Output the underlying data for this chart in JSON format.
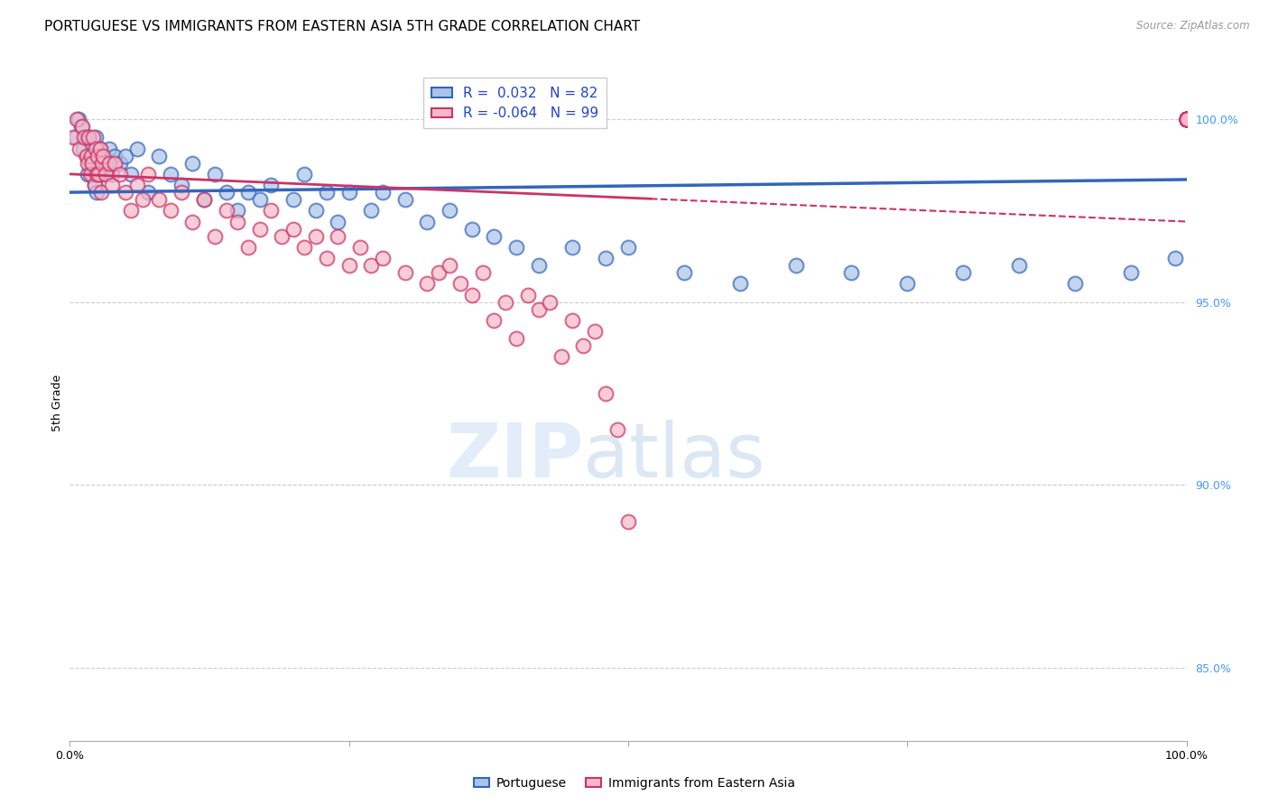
{
  "title": "PORTUGUESE VS IMMIGRANTS FROM EASTERN ASIA 5TH GRADE CORRELATION CHART",
  "source": "Source: ZipAtlas.com",
  "ylabel": "5th Grade",
  "r_blue": 0.032,
  "n_blue": 82,
  "r_pink": -0.064,
  "n_pink": 99,
  "blue_color": "#aac4e8",
  "pink_color": "#f5b8c8",
  "blue_line_color": "#3366bb",
  "pink_line_color": "#cc3366",
  "x_blue": [
    0.5,
    0.8,
    1.0,
    1.2,
    1.4,
    1.5,
    1.6,
    1.7,
    1.8,
    1.9,
    2.0,
    2.1,
    2.2,
    2.3,
    2.4,
    2.5,
    2.6,
    2.7,
    2.8,
    3.0,
    3.2,
    3.5,
    3.8,
    4.0,
    4.5,
    5.0,
    5.5,
    6.0,
    7.0,
    8.0,
    9.0,
    10.0,
    11.0,
    12.0,
    13.0,
    14.0,
    15.0,
    16.0,
    17.0,
    18.0,
    20.0,
    21.0,
    22.0,
    23.0,
    24.0,
    25.0,
    27.0,
    28.0,
    30.0,
    32.0,
    34.0,
    36.0,
    38.0,
    40.0,
    42.0,
    45.0,
    48.0,
    50.0,
    55.0,
    60.0,
    65.0,
    70.0,
    75.0,
    80.0,
    85.0,
    90.0,
    95.0,
    99.0,
    100.0,
    100.0,
    100.0,
    100.0,
    100.0,
    100.0,
    100.0,
    100.0,
    100.0,
    100.0,
    100.0,
    100.0,
    100.0,
    100.0
  ],
  "y_blue": [
    99.5,
    100.0,
    99.8,
    99.2,
    99.5,
    99.0,
    98.5,
    99.5,
    98.8,
    99.3,
    98.5,
    99.0,
    98.2,
    99.5,
    98.0,
    99.0,
    98.8,
    99.2,
    98.5,
    99.0,
    98.8,
    99.2,
    98.5,
    99.0,
    98.8,
    99.0,
    98.5,
    99.2,
    98.0,
    99.0,
    98.5,
    98.2,
    98.8,
    97.8,
    98.5,
    98.0,
    97.5,
    98.0,
    97.8,
    98.2,
    97.8,
    98.5,
    97.5,
    98.0,
    97.2,
    98.0,
    97.5,
    98.0,
    97.8,
    97.2,
    97.5,
    97.0,
    96.8,
    96.5,
    96.0,
    96.5,
    96.2,
    96.5,
    95.8,
    95.5,
    96.0,
    95.8,
    95.5,
    95.8,
    96.0,
    95.5,
    95.8,
    96.2,
    100.0,
    100.0,
    100.0,
    100.0,
    100.0,
    100.0,
    100.0,
    100.0,
    100.0,
    100.0,
    100.0,
    100.0,
    100.0,
    100.0
  ],
  "x_pink": [
    0.3,
    0.6,
    0.9,
    1.1,
    1.3,
    1.5,
    1.6,
    1.7,
    1.8,
    1.9,
    2.0,
    2.1,
    2.2,
    2.3,
    2.4,
    2.5,
    2.6,
    2.7,
    2.8,
    2.9,
    3.0,
    3.2,
    3.5,
    3.8,
    4.0,
    4.5,
    5.0,
    5.5,
    6.0,
    6.5,
    7.0,
    8.0,
    9.0,
    10.0,
    11.0,
    12.0,
    13.0,
    14.0,
    15.0,
    16.0,
    17.0,
    18.0,
    19.0,
    20.0,
    21.0,
    22.0,
    23.0,
    24.0,
    25.0,
    26.0,
    27.0,
    28.0,
    30.0,
    32.0,
    33.0,
    34.0,
    35.0,
    36.0,
    37.0,
    38.0,
    39.0,
    40.0,
    41.0,
    42.0,
    43.0,
    44.0,
    45.0,
    46.0,
    47.0,
    48.0,
    49.0,
    50.0,
    100.0,
    100.0,
    100.0,
    100.0,
    100.0,
    100.0,
    100.0,
    100.0,
    100.0,
    100.0,
    100.0,
    100.0,
    100.0,
    100.0,
    100.0,
    100.0,
    100.0,
    100.0,
    100.0,
    100.0,
    100.0,
    100.0,
    100.0,
    100.0,
    100.0,
    100.0,
    100.0
  ],
  "y_pink": [
    99.5,
    100.0,
    99.2,
    99.8,
    99.5,
    99.0,
    98.8,
    99.5,
    98.5,
    99.0,
    98.8,
    99.5,
    98.2,
    99.2,
    98.5,
    99.0,
    98.5,
    99.2,
    98.0,
    98.8,
    99.0,
    98.5,
    98.8,
    98.2,
    98.8,
    98.5,
    98.0,
    97.5,
    98.2,
    97.8,
    98.5,
    97.8,
    97.5,
    98.0,
    97.2,
    97.8,
    96.8,
    97.5,
    97.2,
    96.5,
    97.0,
    97.5,
    96.8,
    97.0,
    96.5,
    96.8,
    96.2,
    96.8,
    96.0,
    96.5,
    96.0,
    96.2,
    95.8,
    95.5,
    95.8,
    96.0,
    95.5,
    95.2,
    95.8,
    94.5,
    95.0,
    94.0,
    95.2,
    94.8,
    95.0,
    93.5,
    94.5,
    93.8,
    94.2,
    92.5,
    91.5,
    89.0,
    100.0,
    100.0,
    100.0,
    100.0,
    100.0,
    100.0,
    100.0,
    100.0,
    100.0,
    100.0,
    100.0,
    100.0,
    100.0,
    100.0,
    100.0,
    100.0,
    100.0,
    100.0,
    100.0,
    100.0,
    100.0,
    100.0,
    100.0,
    100.0,
    100.0,
    100.0,
    100.0
  ],
  "xlim": [
    0,
    100
  ],
  "ylim": [
    83,
    101.5
  ],
  "yticks_right": [
    85.0,
    90.0,
    95.0,
    100.0
  ],
  "ytick_labels_right": [
    "85.0%",
    "90.0%",
    "95.0%",
    "100.0%"
  ],
  "background_color": "#ffffff",
  "grid_color": "#cccccc",
  "title_fontsize": 11,
  "axis_label_fontsize": 9,
  "tick_fontsize": 9,
  "legend_fontsize": 11,
  "trend_blue_start_y": 98.0,
  "trend_blue_end_y": 98.35,
  "trend_pink_start_y": 98.5,
  "trend_pink_end_y": 97.2,
  "trend_pink_dash_x": 52
}
